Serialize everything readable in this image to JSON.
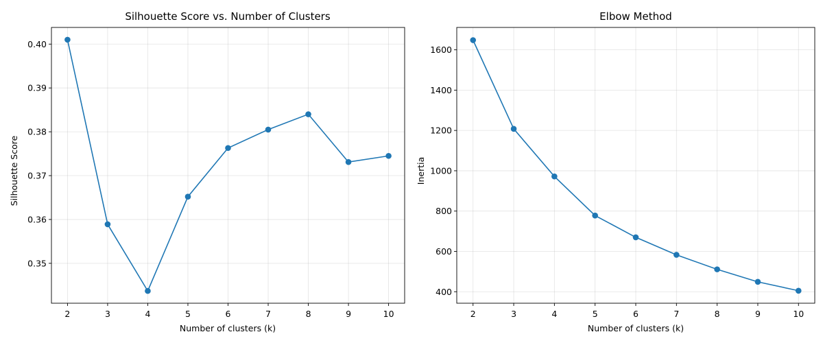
{
  "chart_data": [
    {
      "type": "line",
      "title": "Silhouette Score vs. Number of Clusters",
      "xlabel": "Number of clusters (k)",
      "ylabel": "Silhouette Score",
      "x": [
        2,
        3,
        4,
        5,
        6,
        7,
        8,
        9,
        10
      ],
      "series": [
        {
          "values": [
            0.401,
            0.3589,
            0.3437,
            0.3652,
            0.3763,
            0.3805,
            0.384,
            0.3731,
            0.3745
          ],
          "color": "#1f77b4",
          "marker": "circle"
        }
      ],
      "xlim": [
        1.6,
        10.4
      ],
      "ylim": [
        0.3409,
        0.4038
      ],
      "xticks": [
        2,
        3,
        4,
        5,
        6,
        7,
        8,
        9,
        10
      ],
      "yticks": [
        0.35,
        0.36,
        0.37,
        0.38,
        0.39,
        0.4
      ],
      "ytick_labels": [
        "0.35",
        "0.36",
        "0.37",
        "0.38",
        "0.39",
        "0.40"
      ],
      "grid": true
    },
    {
      "type": "line",
      "title": "Elbow Method",
      "xlabel": "Number of clusters (k)",
      "ylabel": "Inertia",
      "x": [
        2,
        3,
        4,
        5,
        6,
        7,
        8,
        9,
        10
      ],
      "series": [
        {
          "values": [
            1648,
            1208,
            972,
            778,
            670,
            583,
            511,
            449,
            405
          ],
          "color": "#1f77b4",
          "marker": "circle"
        }
      ],
      "xlim": [
        1.6,
        10.4
      ],
      "ylim": [
        343,
        1711
      ],
      "xticks": [
        2,
        3,
        4,
        5,
        6,
        7,
        8,
        9,
        10
      ],
      "yticks": [
        400,
        600,
        800,
        1000,
        1200,
        1400,
        1600
      ],
      "ytick_labels": [
        "400",
        "600",
        "800",
        "1000",
        "1200",
        "1400",
        "1600"
      ],
      "grid": true
    }
  ]
}
